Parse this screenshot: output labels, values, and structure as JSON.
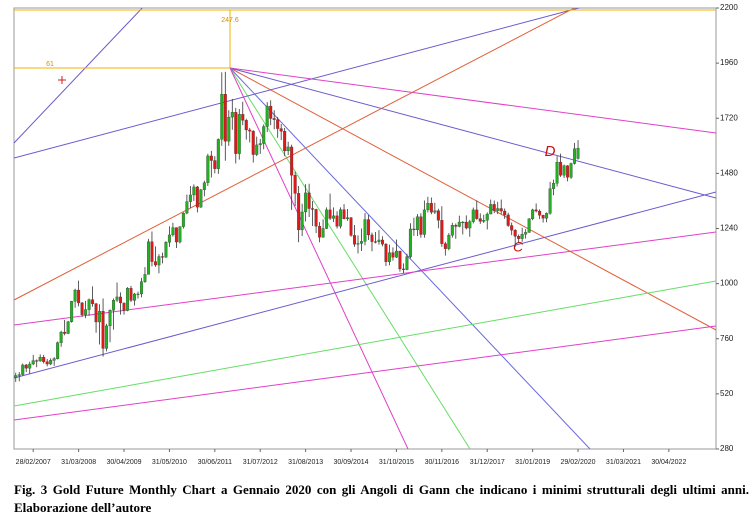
{
  "chart_data": {
    "type": "candlestick",
    "categories": [
      null,
      null,
      null,
      null,
      null,
      "28/02/2007",
      null,
      null,
      null,
      null,
      null,
      null,
      null,
      null,
      null,
      null,
      null,
      null,
      "31/03/2008",
      null,
      null,
      null,
      null,
      null,
      null,
      null,
      null,
      null,
      null,
      null,
      null,
      "30/04/2009",
      null,
      null,
      null,
      null,
      null,
      null,
      null,
      null,
      null,
      null,
      null,
      null,
      "31/05/2010",
      null,
      null,
      null,
      null,
      null,
      null,
      null,
      null,
      null,
      null,
      null,
      null,
      "30/06/2011",
      null,
      null,
      null,
      null,
      null,
      null,
      null,
      null,
      null,
      null,
      null,
      null,
      "31/07/2012",
      null,
      null,
      null,
      null,
      null,
      null,
      null,
      null,
      null,
      null,
      null,
      null,
      "31/08/2013",
      null,
      null,
      null,
      null,
      null,
      null,
      null,
      null,
      null,
      null,
      null,
      null,
      "30/09/2014",
      null,
      null,
      null,
      null,
      null,
      null,
      null,
      null,
      null,
      null,
      null,
      null,
      "31/10/2015",
      null,
      null,
      null,
      null,
      null,
      null,
      null,
      null,
      null,
      null,
      null,
      null,
      "30/11/2016",
      null,
      null,
      null,
      null,
      null,
      null,
      null,
      null,
      null,
      null,
      null,
      null,
      "31/12/2017",
      null,
      null,
      null,
      null,
      null,
      null,
      null,
      null,
      null,
      null,
      null,
      null,
      "31/01/2019",
      null,
      null,
      null,
      null,
      null,
      null,
      null,
      null,
      null,
      null,
      null,
      null,
      "29/02/2020",
      null,
      null,
      null,
      null,
      null,
      null,
      null,
      null,
      null,
      null,
      null,
      null,
      "31/03/2021",
      null,
      null,
      null,
      null,
      null,
      null,
      null,
      null,
      null,
      null,
      null,
      null,
      "30/04/2022",
      null,
      null,
      null,
      null,
      null,
      null,
      null,
      null,
      null,
      null,
      null,
      null,
      null
    ],
    "open": [
      590,
      600,
      604,
      646,
      632,
      650,
      665,
      663,
      680,
      660,
      650,
      666,
      673,
      743,
      789,
      783,
      834,
      923,
      972,
      916,
      865,
      887,
      930,
      912,
      833,
      880,
      718,
      816,
      884,
      928,
      942,
      916,
      883,
      980,
      927,
      955,
      955,
      1008,
      1040,
      1182,
      1096,
      1081,
      1118,
      1115,
      1180,
      1212,
      1244,
      1181,
      1248,
      1307,
      1357,
      1386,
      1421,
      1333,
      1409,
      1439,
      1556,
      1536,
      1500,
      1628,
      1825,
      1620,
      1725,
      1746,
      1566,
      1737,
      1711,
      1669,
      1664,
      1562,
      1604,
      1610,
      1684,
      1773,
      1719,
      1714,
      1675,
      1663,
      1578,
      1595,
      1472,
      1393,
      1234,
      1312,
      1395,
      1327,
      1323,
      1250,
      1202,
      1240,
      1321,
      1284,
      1295,
      1250,
      1322,
      1282,
      1287,
      1210,
      1171,
      1175,
      1184,
      1279,
      1212,
      1183,
      1182,
      1190,
      1172,
      1095,
      1135,
      1115,
      1142,
      1064,
      1061,
      1117,
      1238,
      1234,
      1291,
      1214,
      1321,
      1350,
      1311,
      1317,
      1276,
      1174,
      1152,
      1211,
      1254,
      1249,
      1268,
      1268,
      1242,
      1270,
      1321,
      1283,
      1271,
      1276,
      1303,
      1345,
      1318,
      1327,
      1316,
      1299,
      1253,
      1233,
      1206,
      1196,
      1215,
      1223,
      1282,
      1321,
      1316,
      1298,
      1285,
      1306,
      1413,
      1437,
      1529,
      1472,
      1513,
      1463,
      1523,
      1545,
      null,
      null,
      null,
      null,
      null,
      null,
      null,
      null,
      null,
      null,
      null,
      null,
      null,
      null,
      null,
      null,
      null,
      null,
      null,
      null,
      null,
      null,
      null,
      null,
      null,
      null,
      null,
      null,
      null,
      null,
      null,
      null,
      null,
      null,
      null,
      null,
      null,
      null,
      null
    ],
    "high": [
      612,
      615,
      652,
      650,
      660,
      690,
      670,
      692,
      690,
      672,
      675,
      680,
      748,
      795,
      842,
      838,
      925,
      978,
      1013,
      920,
      925,
      935,
      988,
      916,
      910,
      935,
      825,
      888,
      935,
      1005,
      962,
      916,
      985,
      990,
      960,
      965,
      1025,
      1072,
      1195,
      1227,
      1162,
      1128,
      1135,
      1185,
      1250,
      1265,
      1245,
      1250,
      1310,
      1388,
      1425,
      1432,
      1425,
      1412,
      1448,
      1565,
      1578,
      1555,
      1632,
      1920,
      1922,
      1755,
      1804,
      1765,
      1760,
      1792,
      1718,
      1678,
      1668,
      1640,
      1630,
      1693,
      1790,
      1798,
      1755,
      1725,
      1695,
      1678,
      1618,
      1605,
      1488,
      1425,
      1348,
      1433,
      1435,
      1360,
      1326,
      1268,
      1280,
      1332,
      1392,
      1332,
      1315,
      1332,
      1346,
      1325,
      1290,
      1255,
      1210,
      1240,
      1307,
      1298,
      1222,
      1225,
      1233,
      1206,
      1177,
      1170,
      1158,
      1192,
      1142,
      1088,
      1130,
      1263,
      1287,
      1303,
      1306,
      1362,
      1378,
      1375,
      1352,
      1326,
      1337,
      1182,
      1220,
      1265,
      1262,
      1296,
      1272,
      1297,
      1278,
      1331,
      1362,
      1306,
      1300,
      1310,
      1366,
      1362,
      1356,
      1366,
      1327,
      1309,
      1266,
      1237,
      1214,
      1243,
      1237,
      1285,
      1326,
      1349,
      1323,
      1300,
      1310,
      1443,
      1453,
      1555,
      1566,
      1518,
      1516,
      1527,
      1613,
      1625,
      null,
      null,
      null,
      null,
      null,
      null,
      null,
      null,
      null,
      null,
      null,
      null,
      null,
      null,
      null,
      null,
      null,
      null,
      null,
      null,
      null,
      null,
      null,
      null,
      null,
      null,
      null,
      null,
      null,
      null,
      null,
      null,
      null,
      null,
      null,
      null,
      null,
      null,
      null
    ],
    "low": [
      572,
      575,
      600,
      615,
      608,
      645,
      636,
      660,
      652,
      640,
      645,
      642,
      670,
      725,
      775,
      780,
      830,
      895,
      901,
      855,
      850,
      860,
      900,
      786,
      735,
      682,
      705,
      745,
      800,
      920,
      865,
      865,
      880,
      920,
      905,
      935,
      940,
      1003,
      1040,
      1075,
      1073,
      1045,
      1088,
      1112,
      1160,
      1205,
      1155,
      1175,
      1240,
      1302,
      1330,
      1360,
      1310,
      1330,
      1380,
      1425,
      1462,
      1480,
      1478,
      1600,
      1535,
      1600,
      1670,
      1523,
      1540,
      1690,
      1627,
      1615,
      1527,
      1555,
      1565,
      1585,
      1660,
      1690,
      1672,
      1635,
      1625,
      1555,
      1560,
      1321,
      1338,
      1180,
      1207,
      1271,
      1290,
      1251,
      1220,
      1180,
      1200,
      1238,
      1277,
      1268,
      1240,
      1240,
      1280,
      1273,
      1204,
      1160,
      1131,
      1142,
      1167,
      1190,
      1141,
      1175,
      1170,
      1162,
      1077,
      1080,
      1100,
      1112,
      1052,
      1046,
      1058,
      1110,
      1208,
      1207,
      1200,
      1200,
      1310,
      1302,
      1303,
      1241,
      1160,
      1122,
      1145,
      1200,
      1195,
      1245,
      1214,
      1236,
      1204,
      1262,
      1278,
      1260,
      1264,
      1236,
      1302,
      1307,
      1303,
      1302,
      1282,
      1247,
      1211,
      1160,
      1180,
      1182,
      1196,
      1221,
      1276,
      1310,
      1281,
      1266,
      1267,
      1300,
      1385,
      1423,
      1465,
      1460,
      1445,
      1456,
      1518,
      1540,
      null,
      null,
      null,
      null,
      null,
      null,
      null,
      null,
      null,
      null,
      null,
      null,
      null,
      null,
      null,
      null,
      null,
      null,
      null,
      null,
      null,
      null,
      null,
      null,
      null,
      null,
      null,
      null,
      null,
      null,
      null,
      null,
      null,
      null,
      null,
      null,
      null,
      null,
      null
    ],
    "close": [
      600,
      604,
      646,
      632,
      650,
      665,
      663,
      680,
      660,
      650,
      666,
      673,
      743,
      789,
      783,
      834,
      923,
      972,
      916,
      865,
      887,
      930,
      912,
      833,
      880,
      718,
      816,
      884,
      928,
      942,
      916,
      883,
      980,
      927,
      955,
      955,
      1008,
      1040,
      1182,
      1096,
      1081,
      1118,
      1115,
      1180,
      1212,
      1244,
      1181,
      1248,
      1307,
      1357,
      1386,
      1421,
      1333,
      1409,
      1439,
      1556,
      1536,
      1500,
      1628,
      1825,
      1620,
      1725,
      1746,
      1566,
      1737,
      1711,
      1669,
      1664,
      1562,
      1604,
      1610,
      1684,
      1773,
      1719,
      1714,
      1675,
      1663,
      1578,
      1595,
      1472,
      1393,
      1234,
      1312,
      1395,
      1327,
      1323,
      1250,
      1202,
      1240,
      1321,
      1284,
      1295,
      1250,
      1322,
      1282,
      1287,
      1210,
      1171,
      1175,
      1184,
      1279,
      1212,
      1183,
      1182,
      1190,
      1172,
      1095,
      1135,
      1115,
      1142,
      1064,
      1061,
      1117,
      1238,
      1234,
      1291,
      1214,
      1321,
      1350,
      1311,
      1317,
      1276,
      1174,
      1152,
      1211,
      1254,
      1249,
      1268,
      1268,
      1242,
      1270,
      1321,
      1283,
      1271,
      1276,
      1303,
      1345,
      1318,
      1327,
      1316,
      1299,
      1253,
      1233,
      1206,
      1196,
      1215,
      1223,
      1282,
      1321,
      1316,
      1298,
      1285,
      1306,
      1413,
      1437,
      1529,
      1472,
      1513,
      1463,
      1523,
      1587,
      1590,
      null,
      null,
      null,
      null,
      null,
      null,
      null,
      null,
      null,
      null,
      null,
      null,
      null,
      null,
      null,
      null,
      null,
      null,
      null,
      null,
      null,
      null,
      null,
      null,
      null,
      null,
      null,
      null,
      null,
      null,
      null,
      null,
      null,
      null,
      null,
      null,
      null,
      null,
      null
    ],
    "up_color": "#22b022",
    "down_color": "#e01818",
    "ylim": [
      280,
      2200
    ],
    "yticks": [
      280,
      520,
      760,
      1000,
      1240,
      1480,
      1720,
      1960,
      2200
    ],
    "annotations": [
      "247.6",
      "61",
      "D",
      "C"
    ],
    "caption": "Fig. 3 Gold Future Monthly Chart a Gennaio 2020 con gli Angoli di Gann che indicano i minimi strutturali degli ultimi anni. Elaborazione dell’autore"
  }
}
